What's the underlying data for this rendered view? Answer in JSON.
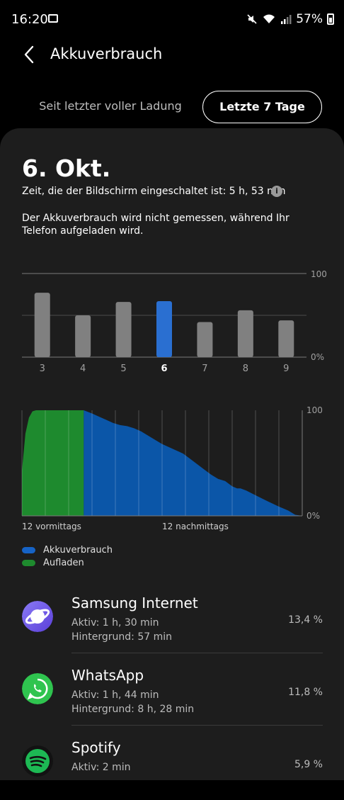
{
  "status_bar": {
    "time": "16:20",
    "battery": "57%"
  },
  "header": {
    "title": "Akkuverbrauch"
  },
  "tabs": {
    "since_full": "Seit letzter voller Ladung",
    "last7": "Letzte 7 Tage"
  },
  "summary": {
    "date": "6. Okt.",
    "screen_time": "Zeit, die der Bildschirm eingeschaltet ist: 5 h, 53 min",
    "note": "Der Akkuverbrauch wird nicht gemessen, während Ihr Telefon aufgeladen wird."
  },
  "chart_data": [
    {
      "type": "bar",
      "categories": [
        "3",
        "4",
        "5",
        "6",
        "7",
        "8",
        "9"
      ],
      "values": [
        77,
        50,
        66,
        67,
        42,
        56,
        44
      ],
      "selected": "6",
      "ylim": [
        0,
        100
      ],
      "y_tick_labels": [
        "100",
        "0%"
      ],
      "colors": {
        "bar": "#808080",
        "selected": "#2a6fd1"
      }
    },
    {
      "type": "area",
      "x_labels": [
        "12 vormittags",
        "12 nachmittags"
      ],
      "y_tick_labels": [
        "100",
        "0%"
      ],
      "ylim": [
        0,
        100
      ],
      "series": [
        {
          "name": "Aufladen",
          "color": "#1e8a2e",
          "points": [
            [
              0,
              43
            ],
            [
              0.5,
              78
            ],
            [
              1,
              93
            ],
            [
              1.5,
              99
            ],
            [
              2,
              100
            ],
            [
              4,
              100
            ],
            [
              6,
              100
            ],
            [
              8.82,
              100
            ]
          ]
        },
        {
          "name": "Akkuverbrauch",
          "color": "#0b56a8",
          "points": [
            [
              8.82,
              100
            ],
            [
              10,
              97
            ],
            [
              11,
              94
            ],
            [
              12,
              91
            ],
            [
              13,
              88
            ],
            [
              14,
              86
            ],
            [
              15,
              85
            ],
            [
              16,
              83
            ],
            [
              17,
              80
            ],
            [
              18,
              76
            ],
            [
              19,
              72
            ],
            [
              20,
              68
            ],
            [
              21,
              65
            ],
            [
              22,
              62
            ],
            [
              23,
              59
            ],
            [
              24,
              54
            ],
            [
              25,
              49
            ],
            [
              26,
              44
            ],
            [
              27,
              39
            ],
            [
              28,
              35
            ],
            [
              29,
              33
            ],
            [
              30,
              28
            ],
            [
              30.7,
              26
            ],
            [
              31.2,
              26
            ],
            [
              32,
              24
            ],
            [
              33.5,
              19
            ],
            [
              35,
              14
            ],
            [
              36.6,
              9
            ],
            [
              38,
              5
            ],
            [
              39,
              1
            ],
            [
              40,
              0
            ]
          ]
        }
      ]
    }
  ],
  "legend": [
    {
      "label": "Akkuverbrauch",
      "color": "#1663c6"
    },
    {
      "label": "Aufladen",
      "color": "#1e8a2e"
    }
  ],
  "apps": [
    {
      "name": "Samsung Internet",
      "active": "Aktiv: 1 h, 30 min",
      "background": "Hintergrund: 57 min",
      "percent": "13,4 %",
      "icon": "samsung-internet-icon"
    },
    {
      "name": "WhatsApp",
      "active": "Aktiv: 1 h, 44 min",
      "background": "Hintergrund: 8 h, 28 min",
      "percent": "11,8 %",
      "icon": "whatsapp-icon"
    },
    {
      "name": "Spotify",
      "active": "Aktiv: 2 min",
      "background": "",
      "percent": "5,9 %",
      "icon": "spotify-icon"
    }
  ]
}
